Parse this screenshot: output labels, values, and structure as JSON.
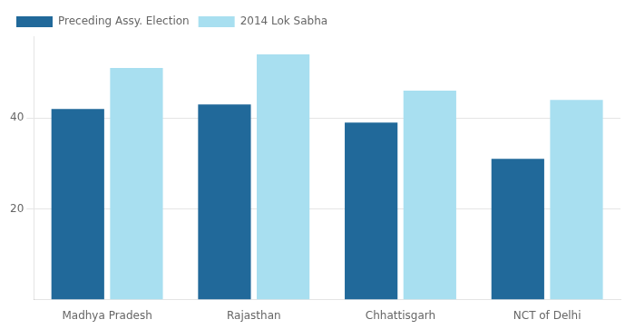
{
  "chart_data": {
    "type": "bar",
    "categories": [
      "Madhya Pradesh",
      "Rajasthan",
      "Chhattisgarh",
      "NCT of Delhi"
    ],
    "series": [
      {
        "name": "Preceding Assy. Election",
        "color": "#21699a",
        "values": [
          42,
          43,
          39,
          31
        ]
      },
      {
        "name": "2014 Lok Sabha",
        "color": "#a8dff0",
        "values": [
          51,
          54,
          46,
          44
        ]
      }
    ],
    "ylim": [
      0,
      58
    ],
    "yticks": [
      20,
      40
    ],
    "grid": true,
    "legend": "upper left"
  }
}
